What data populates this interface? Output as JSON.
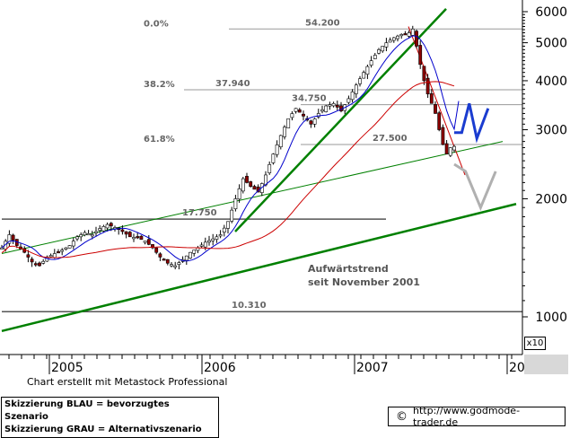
{
  "chart_data": {
    "type": "candlestick",
    "y_scale": "log",
    "ylim": [
      900,
      6400
    ],
    "y_ticks": [
      1000,
      2000,
      3000,
      4000,
      5000,
      6000
    ],
    "y_tick_labels": [
      "1000",
      "2000",
      "3000",
      "4000",
      "5000",
      "6000"
    ],
    "x_ticks": [
      "2005",
      "2006",
      "2007",
      "20"
    ],
    "multiplier_label": "x10",
    "fib_levels": [
      {
        "label": "0.0%",
        "value": 5420
      },
      {
        "label": "38.2%",
        "value": 3794
      },
      {
        "label": "61.8%",
        "value": 2750
      }
    ],
    "levels": [
      {
        "label": "54.200",
        "value": 5420
      },
      {
        "label": "37.940",
        "value": 3794
      },
      {
        "label": "34.750",
        "value": 3475
      },
      {
        "label": "27.500",
        "value": 2750
      },
      {
        "label": "17.750",
        "value": 1775
      },
      {
        "label": "10.310",
        "value": 1031
      }
    ],
    "annotation": [
      "Aufwärtstrend",
      "seit November 2001"
    ],
    "price_path": [
      [
        0,
        1500
      ],
      [
        4,
        1620
      ],
      [
        8,
        1520
      ],
      [
        12,
        1460
      ],
      [
        16,
        1380
      ],
      [
        20,
        1350
      ],
      [
        24,
        1420
      ],
      [
        28,
        1450
      ],
      [
        32,
        1480
      ],
      [
        36,
        1520
      ],
      [
        40,
        1600
      ],
      [
        44,
        1640
      ],
      [
        48,
        1620
      ],
      [
        52,
        1680
      ],
      [
        56,
        1720
      ],
      [
        60,
        1690
      ],
      [
        64,
        1650
      ],
      [
        68,
        1600
      ],
      [
        72,
        1590
      ],
      [
        76,
        1560
      ],
      [
        80,
        1500
      ],
      [
        84,
        1420
      ],
      [
        88,
        1370
      ],
      [
        92,
        1350
      ],
      [
        96,
        1400
      ],
      [
        100,
        1460
      ],
      [
        104,
        1500
      ],
      [
        108,
        1550
      ],
      [
        112,
        1580
      ],
      [
        116,
        1620
      ],
      [
        120,
        1750
      ],
      [
        124,
        2000
      ],
      [
        128,
        2250
      ],
      [
        132,
        2150
      ],
      [
        136,
        2080
      ],
      [
        140,
        2300
      ],
      [
        144,
        2600
      ],
      [
        148,
        2900
      ],
      [
        152,
        3200
      ],
      [
        156,
        3400
      ],
      [
        160,
        3250
      ],
      [
        164,
        3100
      ],
      [
        168,
        3300
      ],
      [
        172,
        3450
      ],
      [
        176,
        3500
      ],
      [
        180,
        3350
      ],
      [
        184,
        3600
      ],
      [
        188,
        3900
      ],
      [
        192,
        4200
      ],
      [
        196,
        4500
      ],
      [
        200,
        4800
      ],
      [
        204,
        5000
      ],
      [
        208,
        5150
      ],
      [
        212,
        5250
      ],
      [
        216,
        5300
      ],
      [
        218,
        5420
      ],
      [
        220,
        4900
      ],
      [
        222,
        4400
      ],
      [
        224,
        4000
      ],
      [
        226,
        3700
      ],
      [
        228,
        3500
      ],
      [
        230,
        3300
      ],
      [
        232,
        3000
      ],
      [
        234,
        2750
      ],
      [
        236,
        2600
      ],
      [
        238,
        2700
      ],
      [
        240,
        2720
      ]
    ],
    "scenario_blue": [
      [
        240,
        2950
      ],
      [
        244,
        2950
      ],
      [
        248,
        3500
      ],
      [
        252,
        2850
      ],
      [
        258,
        3400
      ]
    ],
    "scenario_grey": [
      [
        240,
        2450
      ],
      [
        246,
        2350
      ],
      [
        254,
        1900
      ],
      [
        262,
        2350
      ]
    ],
    "text_notes": [
      "Chart erstellt mit Metastock Professional"
    ]
  },
  "legend": {
    "line1": "Skizzierung BLAU = bevorzugtes Szenario",
    "line2": "Skizzierung GRAU = Alternativszenario"
  },
  "credit": {
    "copyright": "©",
    "url": "http://www.godmode-trader.de"
  },
  "colors": {
    "up": "#ffffff",
    "down": "#8b0000",
    "ma_blue": "#0000cc",
    "ma_red": "#cc0000",
    "trend": "#008000",
    "blue_scenario": "#1a3cd0",
    "grey_scenario": "#b0b0b0"
  }
}
